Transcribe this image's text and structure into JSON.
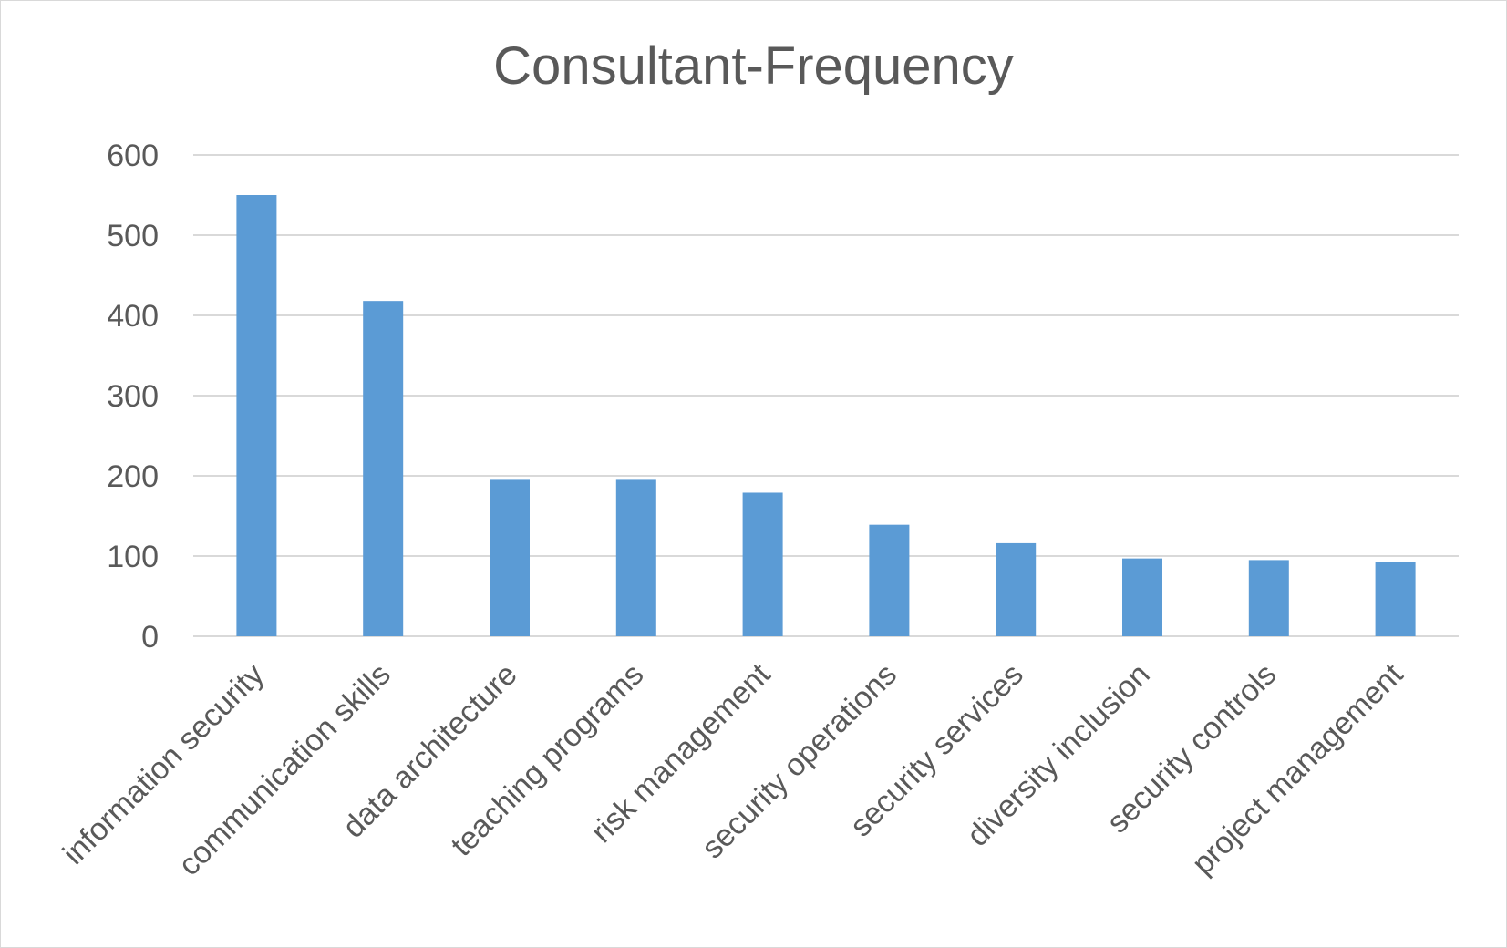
{
  "chart_data": {
    "type": "bar",
    "title": "Consultant-Frequency",
    "xlabel": "",
    "ylabel": "",
    "categories": [
      "information security",
      "communication skills",
      "data architecture",
      "teaching programs",
      "risk management",
      "security operations",
      "security services",
      "diversity inclusion",
      "security controls",
      "project management"
    ],
    "values": [
      550,
      418,
      195,
      195,
      179,
      139,
      116,
      97,
      95,
      93
    ],
    "ylim": [
      0,
      600
    ],
    "yticks": [
      "0",
      "100",
      "200",
      "300",
      "400",
      "500",
      "600"
    ],
    "grid": true,
    "legend": "none",
    "colors": {
      "bar": "#5b9bd5",
      "grid": "#d9d9d9",
      "text": "#595959"
    }
  }
}
